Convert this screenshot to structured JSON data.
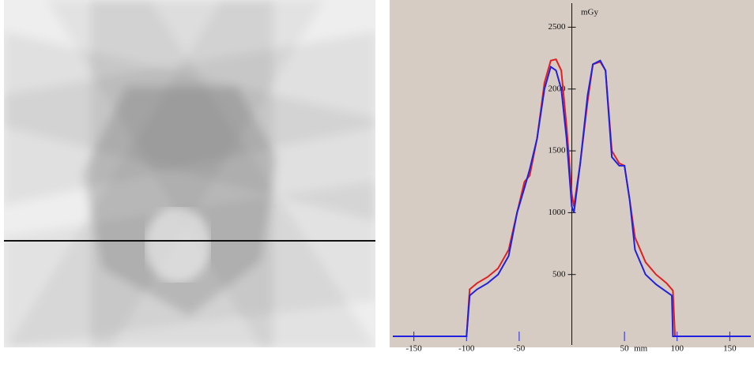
{
  "chart_data": {
    "type": "line",
    "y_label": "mGy",
    "x_label": "mm",
    "x": [
      -170,
      -100,
      -97,
      -90,
      -80,
      -70,
      -60,
      -52,
      -45,
      -40,
      -33,
      -26,
      -20,
      -15,
      -10,
      -5,
      0,
      2,
      8,
      15,
      20,
      27,
      32,
      38,
      45,
      50,
      55,
      60,
      70,
      80,
      90,
      95,
      96,
      98,
      170
    ],
    "series": [
      {
        "color": "#e02020",
        "values": [
          0,
          0,
          380,
          430,
          480,
          550,
          700,
          1000,
          1250,
          1300,
          1600,
          2050,
          2230,
          2240,
          2150,
          1700,
          1150,
          1050,
          1400,
          1900,
          2200,
          2220,
          2150,
          1500,
          1400,
          1380,
          1100,
          800,
          600,
          500,
          430,
          380,
          370,
          0,
          0
        ]
      },
      {
        "color": "#2020e0",
        "values": [
          0,
          0,
          330,
          380,
          430,
          500,
          650,
          1000,
          1200,
          1350,
          1600,
          2000,
          2180,
          2150,
          2000,
          1600,
          1050,
          1000,
          1400,
          1950,
          2200,
          2230,
          2150,
          1450,
          1380,
          1380,
          1100,
          700,
          500,
          420,
          360,
          330,
          0,
          0,
          0
        ]
      }
    ],
    "xlim": [
      -170,
      170
    ],
    "ylim": [
      -70,
      2720
    ],
    "xticks": [
      -150,
      -100,
      -50,
      50,
      100,
      150
    ],
    "yticks": [
      500,
      1000,
      1500,
      2000,
      2500
    ]
  }
}
